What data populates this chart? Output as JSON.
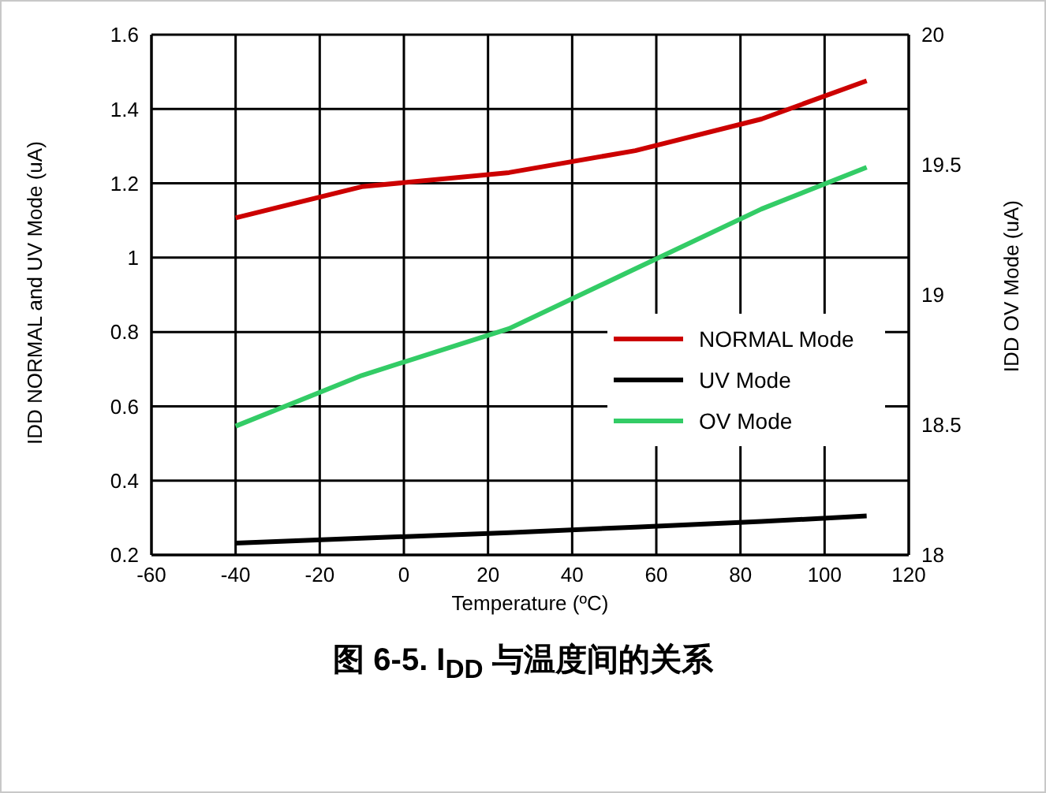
{
  "chart_data": {
    "type": "line",
    "title": "图 6-5. I$_{DD}$ 与温度间的关系",
    "xlabel": "Temperature (ºC)",
    "ylabel": "IDD NORMAL and UV Mode (uA)",
    "y2label": "IDD OV Mode (uA)",
    "x": [
      -40,
      -10,
      25,
      55,
      85,
      110
    ],
    "series": [
      {
        "name": "NORMAL Mode",
        "color": "#cc0000",
        "values": [
          1.107,
          1.191,
          1.229,
          1.288,
          1.373,
          1.476
        ]
      },
      {
        "name": "UV Mode",
        "color": "#000000",
        "values": [
          0.232,
          0.245,
          0.26,
          0.275,
          0.29,
          0.305
        ]
      },
      {
        "name": "OV Mode",
        "color": "#33cc66",
        "axis": "y2",
        "values": [
          18.495,
          18.69,
          18.87,
          19.1,
          19.33,
          19.49
        ]
      }
    ],
    "xlim": [
      -60,
      120
    ],
    "xticks": [
      -60,
      -40,
      -20,
      0,
      20,
      40,
      60,
      80,
      100,
      120
    ],
    "ylim": [
      0.2,
      1.6
    ],
    "yticks": [
      0.2,
      0.4,
      0.6,
      0.8,
      1,
      1.2,
      1.4,
      1.6
    ],
    "y2lim": [
      18,
      20
    ],
    "y2ticks": [
      18,
      18.5,
      19,
      19.5,
      20
    ],
    "grid": true,
    "legend": "right",
    "line_style": "solid"
  }
}
